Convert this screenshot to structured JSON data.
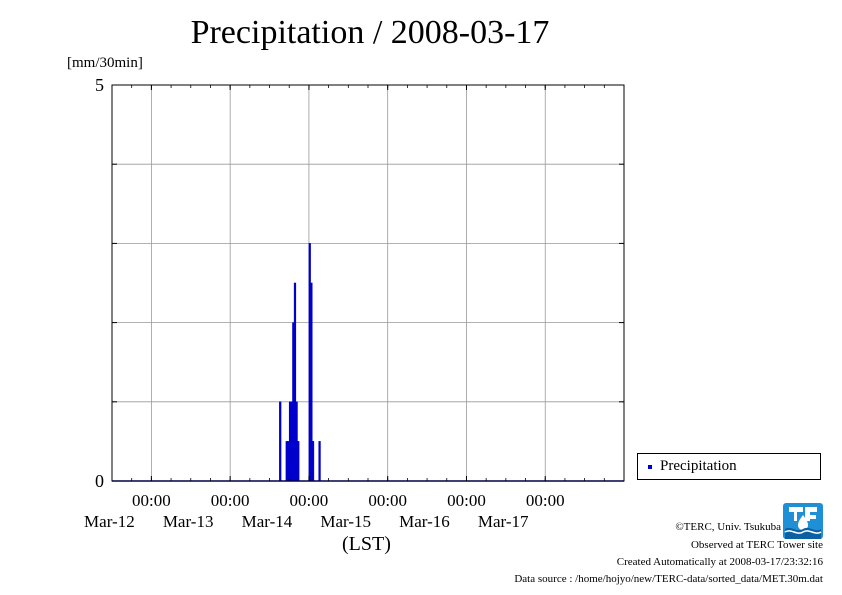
{
  "title": "Precipitation / 2008-03-17",
  "ylabel": "[mm/30min]",
  "xlabel": "(LST)",
  "legend": {
    "label": "Precipitation"
  },
  "footer": {
    "credit": "©TERC, Univ. Tsukuba",
    "observed": "Observed at TERC Tower site",
    "created": "Created Automatically at 2008-03-17/23:32:16",
    "source": "Data source : /home/hojyo/new/TERC-data/sorted_data/MET.30m.dat"
  },
  "colors": {
    "series": "#0000cc",
    "grid": "#999999",
    "logo": "#1f8fd6"
  },
  "chart_data": {
    "type": "bar",
    "title": "Precipitation / 2008-03-17",
    "xlabel": "(LST)",
    "ylabel": "[mm/30min]",
    "ylim": [
      0,
      5
    ],
    "yticks": [
      0,
      5
    ],
    "xlim": [
      "2008-03-11 12:00",
      "2008-03-17 24:00"
    ],
    "xtick_labels": [
      {
        "time": "00:00",
        "date": "Mar-12",
        "datetime": "2008-03-12 00:00"
      },
      {
        "time": "00:00",
        "date": "Mar-13",
        "datetime": "2008-03-13 00:00"
      },
      {
        "time": "00:00",
        "date": "Mar-14",
        "datetime": "2008-03-14 00:00"
      },
      {
        "time": "00:00",
        "date": "Mar-15",
        "datetime": "2008-03-15 00:00"
      },
      {
        "time": "00:00",
        "date": "Mar-16",
        "datetime": "2008-03-16 00:00"
      },
      {
        "time": "00:00",
        "date": "Mar-17",
        "datetime": "2008-03-17 00:00"
      }
    ],
    "grid": true,
    "legend_position": "right-bottom",
    "series": [
      {
        "name": "Precipitation",
        "color": "#0000cc",
        "points": [
          {
            "time": "2008-03-13 15:00",
            "value": 1.0
          },
          {
            "time": "2008-03-13 17:00",
            "value": 0.5
          },
          {
            "time": "2008-03-13 17:30",
            "value": 0.5
          },
          {
            "time": "2008-03-13 18:00",
            "value": 1.0
          },
          {
            "time": "2008-03-13 18:30",
            "value": 1.0
          },
          {
            "time": "2008-03-13 19:00",
            "value": 2.0
          },
          {
            "time": "2008-03-13 19:30",
            "value": 2.5
          },
          {
            "time": "2008-03-13 20:00",
            "value": 1.0
          },
          {
            "time": "2008-03-13 20:30",
            "value": 0.5
          },
          {
            "time": "2008-03-14 00:00",
            "value": 3.0
          },
          {
            "time": "2008-03-14 00:30",
            "value": 2.5
          },
          {
            "time": "2008-03-14 01:00",
            "value": 0.5
          },
          {
            "time": "2008-03-14 03:00",
            "value": 0.5
          }
        ]
      }
    ]
  }
}
